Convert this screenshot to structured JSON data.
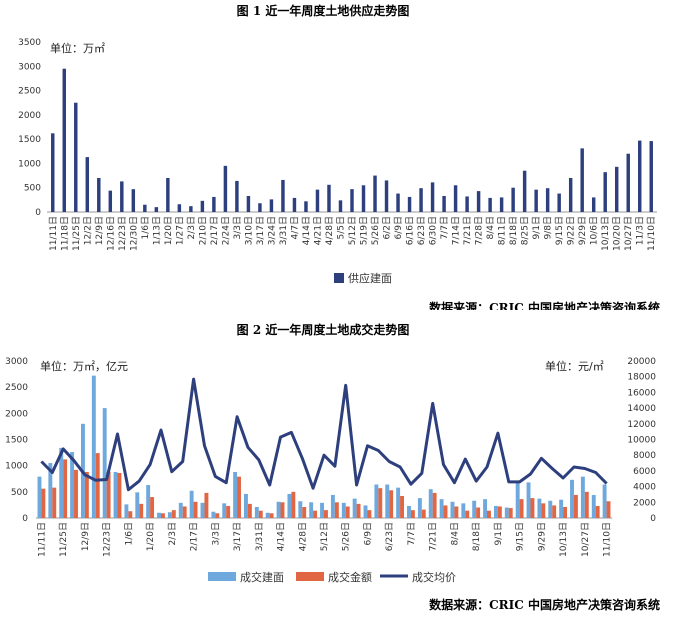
{
  "charts": [
    {
      "title": "图 1  近一年周度土地供应走势图",
      "unit": "单位：万㎡",
      "source": "数据来源：CRIC 中国房地产决策咨询系统",
      "legend": [
        "供应建面"
      ],
      "ytick_labels": [
        "0",
        "500",
        "1000",
        "1500",
        "2000",
        "2500",
        "3000",
        "3500"
      ],
      "xtick_labels": [
        "11/11日",
        "11/18日",
        "11/25日",
        "12/2日",
        "12/9日",
        "12/16日",
        "12/23日",
        "12/30日",
        "1/6日",
        "1/13日",
        "1/20日",
        "1/27日",
        "2/3日",
        "2/10日",
        "2/17日",
        "2/24日",
        "3/3日",
        "3/10日",
        "3/17日",
        "3/24日",
        "3/31日",
        "4/7日",
        "4/14日",
        "4/21日",
        "4/28日",
        "5/5日",
        "5/12日",
        "5/19日",
        "5/26日",
        "6/2日",
        "6/9日",
        "6/16日",
        "6/23日",
        "6/30日",
        "7/7日",
        "7/14日",
        "7/21日",
        "7/28日",
        "8/4日",
        "8/11日",
        "8/18日",
        "8/25日",
        "9/1日",
        "9/8日",
        "9/15日",
        "9/22日",
        "9/29日",
        "10/6日",
        "10/13日",
        "10/20日",
        "10/27日",
        "11/3日",
        "11/10日"
      ],
      "colors": {
        "supply": "#2e3f7e"
      }
    },
    {
      "title": "图 2  近一年周度土地成交走势图",
      "unit_left": "单位：万㎡，亿元",
      "unit_right": "单位：元/㎡",
      "source": "数据来源：CRIC 中国房地产决策咨询系统",
      "legend": [
        "成交建面",
        "成交金额",
        "成交均价"
      ],
      "ytick_left": [
        "0",
        "500",
        "1000",
        "1500",
        "2000",
        "2500",
        "3000"
      ],
      "ytick_right": [
        "0",
        "2000",
        "4000",
        "6000",
        "8000",
        "10000",
        "12000",
        "14000",
        "16000",
        "18000",
        "20000"
      ],
      "xtick_labels": [
        "11/11日",
        "11/25日",
        "12/9日",
        "12/23日",
        "1/6日",
        "1/20日",
        "2/3日",
        "2/17日",
        "3/3日",
        "3/17日",
        "3/31日",
        "4/14日",
        "4/28日",
        "5/12日",
        "5/26日",
        "6/9日",
        "6/23日",
        "7/7日",
        "7/21日",
        "8/4日",
        "8/18日",
        "9/1日",
        "9/15日",
        "9/29日",
        "10/13日",
        "10/27日",
        "11/10日"
      ],
      "colors": {
        "area": "#6fa8dc",
        "amount": "#e06644",
        "price": "#2e3f7e"
      }
    }
  ],
  "chart_data": [
    {
      "type": "bar",
      "title": "图 1  近一年周度土地供应走势图",
      "ylabel": "单位：万㎡",
      "ylim": [
        0,
        3500
      ],
      "grid": false,
      "legend_position": "bottom",
      "categories": [
        "11/11日",
        "11/18日",
        "11/25日",
        "12/2日",
        "12/9日",
        "12/16日",
        "12/23日",
        "12/30日",
        "1/6日",
        "1/13日",
        "1/20日",
        "1/27日",
        "2/3日",
        "2/10日",
        "2/17日",
        "2/24日",
        "3/3日",
        "3/10日",
        "3/17日",
        "3/24日",
        "3/31日",
        "4/7日",
        "4/14日",
        "4/21日",
        "4/28日",
        "5/5日",
        "5/12日",
        "5/19日",
        "5/26日",
        "6/2日",
        "6/9日",
        "6/16日",
        "6/23日",
        "6/30日",
        "7/7日",
        "7/14日",
        "7/21日",
        "7/28日",
        "8/4日",
        "8/11日",
        "8/18日",
        "8/25日",
        "9/1日",
        "9/8日",
        "9/15日",
        "9/22日",
        "9/29日",
        "10/6日",
        "10/13日",
        "10/20日",
        "10/27日",
        "11/3日",
        "11/10日"
      ],
      "series": [
        {
          "name": "供应建面",
          "values": [
            1620,
            2950,
            2250,
            1130,
            700,
            440,
            630,
            470,
            150,
            100,
            700,
            160,
            120,
            230,
            310,
            950,
            640,
            330,
            180,
            260,
            660,
            290,
            220,
            460,
            560,
            240,
            470,
            550,
            750,
            650,
            380,
            310,
            490,
            610,
            330,
            550,
            320,
            430,
            290,
            300,
            500,
            850,
            460,
            490,
            380,
            700,
            1310,
            300,
            820,
            930,
            1200,
            1470,
            1460
          ]
        }
      ]
    },
    {
      "type": "bar",
      "title": "图 2  近一年周度土地成交走势图",
      "ylabel": "单位：万㎡，亿元",
      "y2label": "单位：元/㎡",
      "ylim": [
        0,
        3000
      ],
      "y2lim": [
        0,
        20000
      ],
      "grid": false,
      "legend_position": "bottom",
      "categories": [
        "11/11日",
        "11/18日",
        "11/25日",
        "12/2日",
        "12/9日",
        "12/16日",
        "12/23日",
        "12/30日",
        "1/6日",
        "1/13日",
        "1/20日",
        "1/27日",
        "2/3日",
        "2/10日",
        "2/17日",
        "2/24日",
        "3/3日",
        "3/10日",
        "3/17日",
        "3/24日",
        "3/31日",
        "4/7日",
        "4/14日",
        "4/21日",
        "4/28日",
        "5/5日",
        "5/12日",
        "5/19日",
        "5/26日",
        "6/2日",
        "6/9日",
        "6/16日",
        "6/23日",
        "6/30日",
        "7/7日",
        "7/14日",
        "7/21日",
        "7/28日",
        "8/4日",
        "8/11日",
        "8/18日",
        "8/25日",
        "9/1日",
        "9/8日",
        "9/15日",
        "9/22日",
        "9/29日",
        "10/6日",
        "10/13日",
        "10/20日",
        "10/27日",
        "11/3日",
        "11/10日"
      ],
      "series": [
        {
          "name": "成交建面",
          "axis": "left",
          "values": [
            790,
            1050,
            1340,
            1260,
            1800,
            2720,
            2100,
            880,
            260,
            490,
            630,
            100,
            110,
            290,
            520,
            290,
            120,
            280,
            880,
            460,
            210,
            100,
            310,
            460,
            320,
            300,
            290,
            440,
            290,
            370,
            240,
            640,
            640,
            580,
            230,
            380,
            550,
            360,
            310,
            280,
            330,
            360,
            230,
            200,
            690,
            680,
            370,
            330,
            350,
            730,
            790,
            440,
            640
          ]
        },
        {
          "name": "成交金额",
          "axis": "left",
          "values": [
            560,
            580,
            1120,
            920,
            880,
            1240,
            880,
            860,
            130,
            270,
            400,
            90,
            150,
            220,
            310,
            480,
            90,
            230,
            790,
            270,
            140,
            90,
            300,
            500,
            210,
            140,
            150,
            300,
            220,
            270,
            150,
            570,
            530,
            420,
            150,
            160,
            480,
            240,
            220,
            140,
            200,
            140,
            220,
            190,
            360,
            380,
            280,
            240,
            210,
            440,
            500,
            230,
            320
          ]
        },
        {
          "name": "成交均价",
          "axis": "right",
          "values": [
            7200,
            5800,
            8800,
            7300,
            5500,
            4800,
            4900,
            10700,
            3600,
            4700,
            6800,
            11200,
            5900,
            7200,
            17700,
            9200,
            5300,
            4500,
            12900,
            9000,
            7400,
            4200,
            10300,
            10900,
            7600,
            3800,
            8000,
            6600,
            16900,
            4200,
            9200,
            8600,
            7200,
            6500,
            4300,
            5700,
            14600,
            6800,
            4500,
            7500,
            4700,
            6500,
            10800,
            4600,
            4600,
            5600,
            7600,
            6300,
            5100,
            6500,
            6300,
            5800,
            4400
          ]
        }
      ]
    }
  ]
}
